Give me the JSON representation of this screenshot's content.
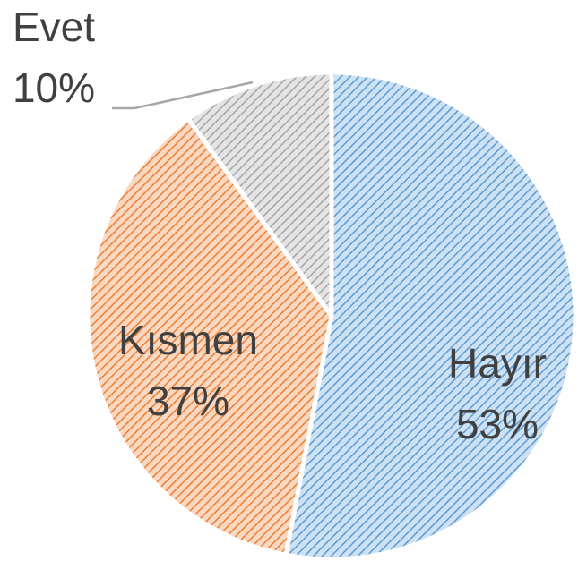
{
  "chart_data": {
    "type": "pie",
    "categories": [
      "Hayır",
      "Kısmen",
      "Evet"
    ],
    "values": [
      53,
      37,
      10
    ],
    "value_labels": [
      "53%",
      "37%",
      "10%"
    ],
    "colors": [
      "#5b9bd5",
      "#ed7d31",
      "#a5a5a5"
    ]
  }
}
